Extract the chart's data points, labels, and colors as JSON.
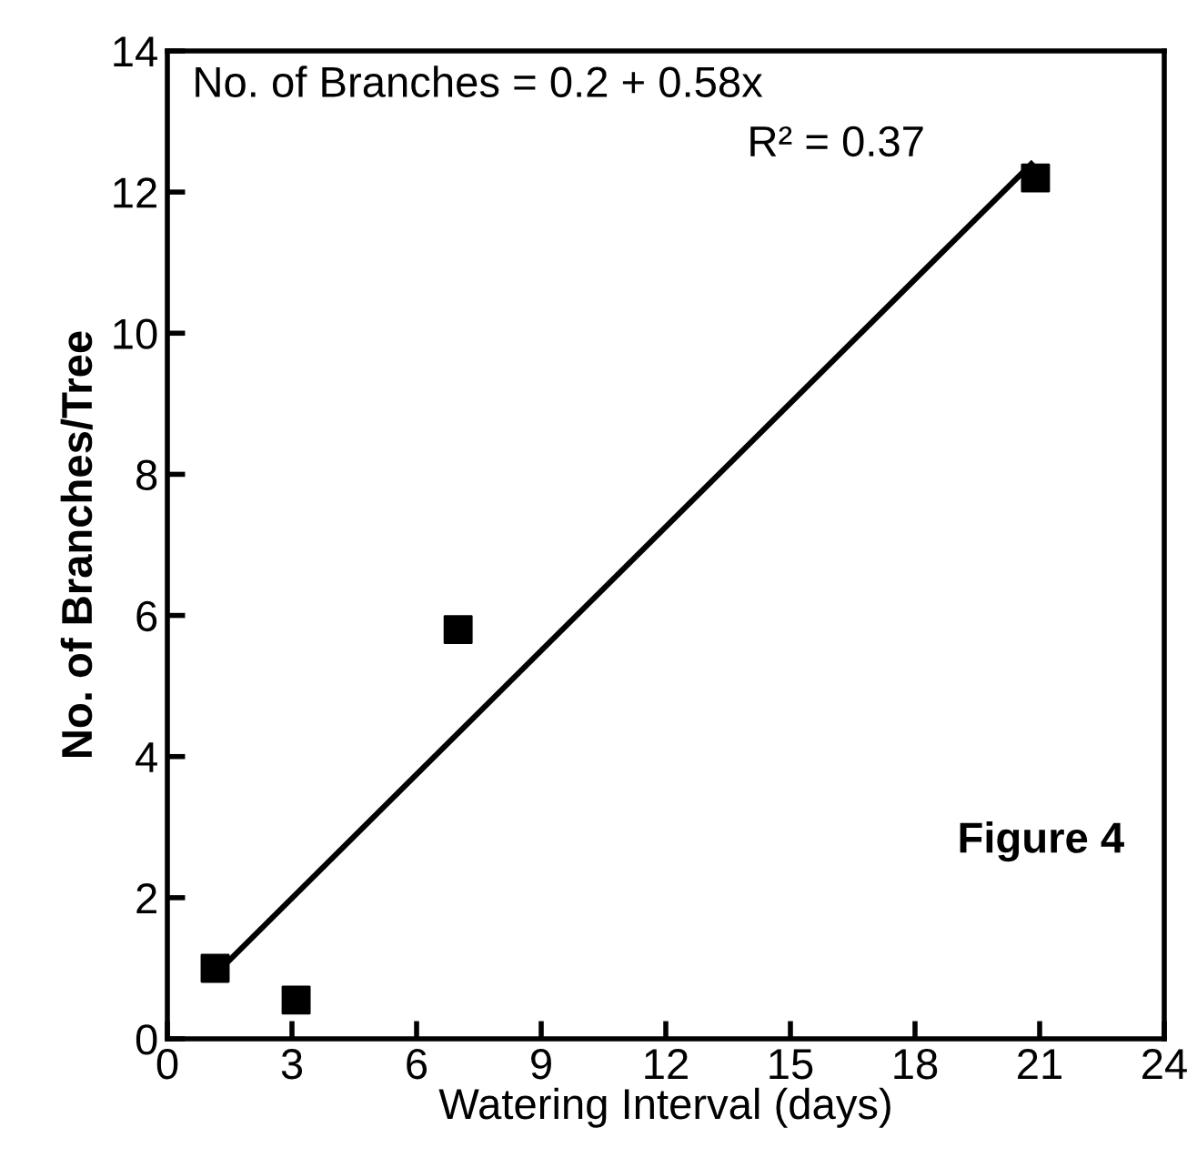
{
  "chart_data": {
    "type": "scatter",
    "xlabel": "Watering Interval (days)",
    "ylabel": "No. of Branches/Tree",
    "x": [
      1.15,
      3.1,
      7.0,
      20.9
    ],
    "series": [
      {
        "color": "#000000",
        "marker": "square",
        "values": [
          1.0,
          0.55,
          5.8,
          12.2
        ]
      },
      {
        "type": "line",
        "color": "#000000",
        "x": [
          1.3,
          20.8
        ],
        "values": [
          1.0,
          12.4
        ]
      }
    ],
    "xlim": [
      0,
      24
    ],
    "xticks": [
      0,
      3,
      6,
      9,
      12,
      15,
      18,
      21,
      24
    ],
    "ylim": [
      0,
      14
    ],
    "yticks": [
      0,
      2,
      4,
      6,
      8,
      10,
      12,
      14
    ],
    "grid": false,
    "legend": false,
    "annotations": [
      "No. of Branches = 0.2 + 0.58x",
      "R² = 0.37",
      "Figure 4"
    ]
  }
}
